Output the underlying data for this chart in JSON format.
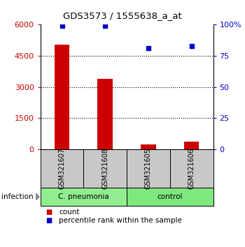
{
  "title": "GDS3573 / 1555638_a_at",
  "samples": [
    "GSM321607",
    "GSM321608",
    "GSM321605",
    "GSM321606"
  ],
  "counts": [
    5050,
    3400,
    250,
    370
  ],
  "percentiles": [
    99,
    99,
    81,
    83
  ],
  "group_label": "infection",
  "group_info": [
    {
      "indices": [
        0,
        1
      ],
      "name": "C. pneumonia",
      "color": "#90EE90"
    },
    {
      "indices": [
        2,
        3
      ],
      "name": "control",
      "color": "#7EE87E"
    }
  ],
  "ylim_left": [
    0,
    6000
  ],
  "ylim_right": [
    0,
    100
  ],
  "yticks_left": [
    0,
    1500,
    3000,
    4500,
    6000
  ],
  "yticks_right": [
    0,
    25,
    50,
    75,
    100
  ],
  "ytick_labels_left": [
    "0",
    "1500",
    "3000",
    "4500",
    "6000"
  ],
  "ytick_labels_right": [
    "0",
    "25",
    "50",
    "75",
    "100%"
  ],
  "bar_color": "#CC0000",
  "dot_color": "#0000CC",
  "bar_width": 0.35,
  "bg_color": "#ffffff",
  "sample_box_color": "#C8C8C8",
  "label_count": "count",
  "label_percentile": "percentile rank within the sample"
}
